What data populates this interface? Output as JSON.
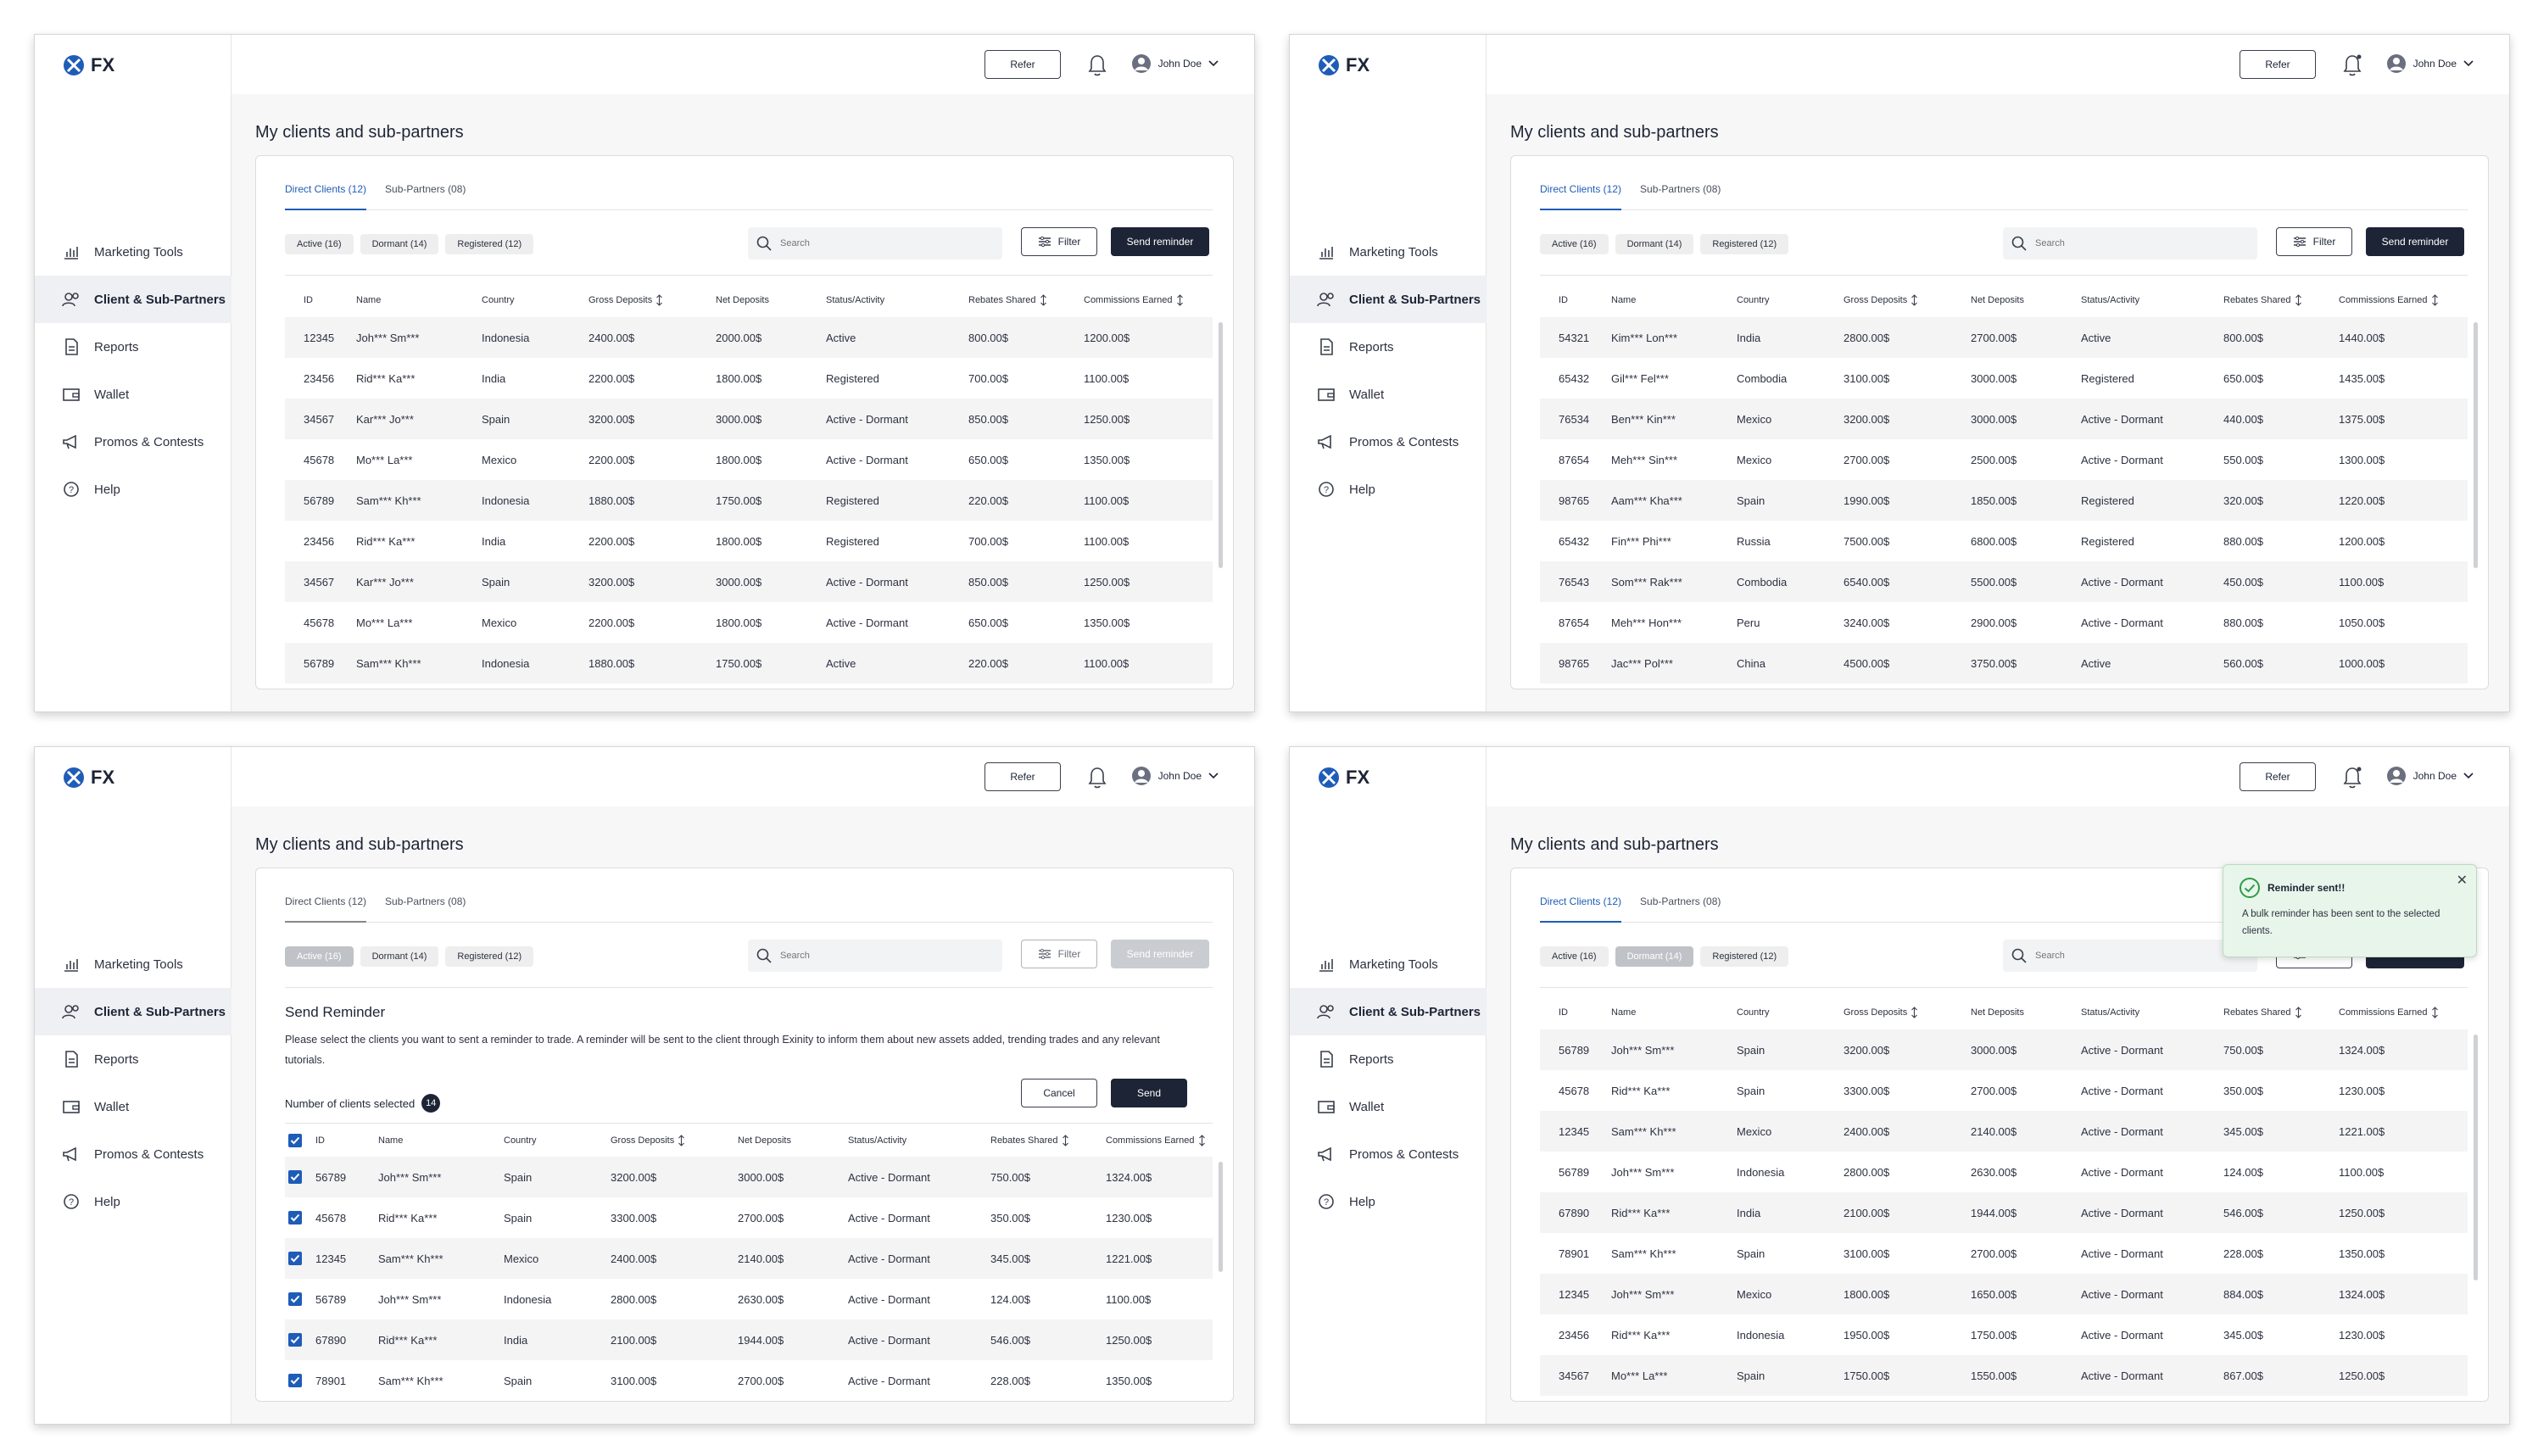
{
  "app": {
    "logo_text": "FX"
  },
  "nav": [
    {
      "label": "Marketing Tools",
      "icon": "bar-chart-icon"
    },
    {
      "label": "Client & Sub-Partners",
      "icon": "users-icon"
    },
    {
      "label": "Reports",
      "icon": "document-icon"
    },
    {
      "label": "Wallet",
      "icon": "wallet-icon"
    },
    {
      "label": "Promos & Contests",
      "icon": "megaphone-icon"
    },
    {
      "label": "Help",
      "icon": "help-icon"
    }
  ],
  "topbar": {
    "refer": "Refer",
    "user_name": "John Doe"
  },
  "page": {
    "title": "My clients and sub-partners"
  },
  "tabs": {
    "direct": "Direct Clients (12)",
    "sub": "Sub-Partners (08)"
  },
  "chips": {
    "active": "Active (16)",
    "dormant": "Dormant (14)",
    "registered": "Registered (12)"
  },
  "actions": {
    "search_placeholder": "Search",
    "filter": "Filter",
    "send_reminder": "Send reminder"
  },
  "columns": [
    "ID",
    "Name",
    "Country",
    "Gross Deposits",
    "Net Deposits",
    "Status/Activity",
    "Rebates Shared",
    "Commissions Earned"
  ],
  "screen1_rows": [
    [
      "12345",
      "Joh*** Sm***",
      "Indonesia",
      "2400.00$",
      "2000.00$",
      "Active",
      "800.00$",
      "1200.00$"
    ],
    [
      "23456",
      "Rid*** Ka***",
      "India",
      "2200.00$",
      "1800.00$",
      "Registered",
      "700.00$",
      "1100.00$"
    ],
    [
      "34567",
      "Kar*** Jo***",
      "Spain",
      "3200.00$",
      "3000.00$",
      "Active - Dormant",
      "850.00$",
      "1250.00$"
    ],
    [
      "45678",
      "Mo*** La***",
      "Mexico",
      "2200.00$",
      "1800.00$",
      "Active - Dormant",
      "650.00$",
      "1350.00$"
    ],
    [
      "56789",
      "Sam*** Kh***",
      "Indonesia",
      "1880.00$",
      "1750.00$",
      "Registered",
      "220.00$",
      "1100.00$"
    ],
    [
      "23456",
      "Rid*** Ka***",
      "India",
      "2200.00$",
      "1800.00$",
      "Registered",
      "700.00$",
      "1100.00$"
    ],
    [
      "34567",
      "Kar*** Jo***",
      "Spain",
      "3200.00$",
      "3000.00$",
      "Active - Dormant",
      "850.00$",
      "1250.00$"
    ],
    [
      "45678",
      "Mo*** La***",
      "Mexico",
      "2200.00$",
      "1800.00$",
      "Active - Dormant",
      "650.00$",
      "1350.00$"
    ],
    [
      "56789",
      "Sam*** Kh***",
      "Indonesia",
      "1880.00$",
      "1750.00$",
      "Active",
      "220.00$",
      "1100.00$"
    ]
  ],
  "screen2_rows": [
    [
      "54321",
      "Kim*** Lon***",
      "India",
      "2800.00$",
      "2700.00$",
      "Active",
      "800.00$",
      "1440.00$"
    ],
    [
      "65432",
      "Gil*** Fel***",
      "Combodia",
      "3100.00$",
      "3000.00$",
      "Registered",
      "650.00$",
      "1435.00$"
    ],
    [
      "76534",
      "Ben*** Kin***",
      "Mexico",
      "3200.00$",
      "3000.00$",
      "Active - Dormant",
      "440.00$",
      "1375.00$"
    ],
    [
      "87654",
      "Meh*** Sin***",
      "Mexico",
      "2700.00$",
      "2500.00$",
      "Active - Dormant",
      "550.00$",
      "1300.00$"
    ],
    [
      "98765",
      "Aam*** Kha***",
      "Spain",
      "1990.00$",
      "1850.00$",
      "Registered",
      "320.00$",
      "1220.00$"
    ],
    [
      "65432",
      "Fin*** Phi***",
      "Russia",
      "7500.00$",
      "6800.00$",
      "Registered",
      "880.00$",
      "1200.00$"
    ],
    [
      "76543",
      "Som*** Rak***",
      "Combodia",
      "6540.00$",
      "5500.00$",
      "Active - Dormant",
      "450.00$",
      "1100.00$"
    ],
    [
      "87654",
      "Meh*** Hon***",
      "Peru",
      "3240.00$",
      "2900.00$",
      "Active - Dormant",
      "880.00$",
      "1050.00$"
    ],
    [
      "98765",
      "Jac*** Pol***",
      "China",
      "4500.00$",
      "3750.00$",
      "Active",
      "560.00$",
      "1000.00$"
    ]
  ],
  "reminder": {
    "title": "Send Reminder",
    "description": "Please select the clients you want to sent a reminder to trade. A reminder will be sent to the client through Exinity to inform them about new assets added, trending trades and any relevant tutorials.",
    "count_label": "Number of clients selected",
    "count": "14",
    "cancel": "Cancel",
    "send": "Send"
  },
  "screen3_rows": [
    [
      "56789",
      "Joh*** Sm***",
      "Spain",
      "3200.00$",
      "3000.00$",
      "Active - Dormant",
      "750.00$",
      "1324.00$"
    ],
    [
      "45678",
      "Rid*** Ka***",
      "Spain",
      "3300.00$",
      "2700.00$",
      "Active - Dormant",
      "350.00$",
      "1230.00$"
    ],
    [
      "12345",
      "Sam*** Kh***",
      "Mexico",
      "2400.00$",
      "2140.00$",
      "Active - Dormant",
      "345.00$",
      "1221.00$"
    ],
    [
      "56789",
      "Joh*** Sm***",
      "Indonesia",
      "2800.00$",
      "2630.00$",
      "Active - Dormant",
      "124.00$",
      "1100.00$"
    ],
    [
      "67890",
      "Rid*** Ka***",
      "India",
      "2100.00$",
      "1944.00$",
      "Active - Dormant",
      "546.00$",
      "1250.00$"
    ],
    [
      "78901",
      "Sam*** Kh***",
      "Spain",
      "3100.00$",
      "2700.00$",
      "Active - Dormant",
      "228.00$",
      "1350.00$"
    ]
  ],
  "toast": {
    "title": "Reminder sent!!",
    "body": "A bulk reminder has been sent to the selected clients."
  },
  "screen4_rows": [
    [
      "56789",
      "Joh*** Sm***",
      "Spain",
      "3200.00$",
      "3000.00$",
      "Active - Dormant",
      "750.00$",
      "1324.00$"
    ],
    [
      "45678",
      "Rid*** Ka***",
      "Spain",
      "3300.00$",
      "2700.00$",
      "Active - Dormant",
      "350.00$",
      "1230.00$"
    ],
    [
      "12345",
      "Sam*** Kh***",
      "Mexico",
      "2400.00$",
      "2140.00$",
      "Active - Dormant",
      "345.00$",
      "1221.00$"
    ],
    [
      "56789",
      "Joh*** Sm***",
      "Indonesia",
      "2800.00$",
      "2630.00$",
      "Active - Dormant",
      "124.00$",
      "1100.00$"
    ],
    [
      "67890",
      "Rid*** Ka***",
      "India",
      "2100.00$",
      "1944.00$",
      "Active - Dormant",
      "546.00$",
      "1250.00$"
    ],
    [
      "78901",
      "Sam*** Kh***",
      "Spain",
      "3100.00$",
      "2700.00$",
      "Active - Dormant",
      "228.00$",
      "1350.00$"
    ],
    [
      "12345",
      "Joh*** Sm***",
      "Mexico",
      "1800.00$",
      "1650.00$",
      "Active - Dormant",
      "884.00$",
      "1324.00$"
    ],
    [
      "23456",
      "Rid*** Ka***",
      "Indonesia",
      "1950.00$",
      "1750.00$",
      "Active - Dormant",
      "345.00$",
      "1230.00$"
    ],
    [
      "34567",
      "Mo*** La***",
      "Spain",
      "1750.00$",
      "1550.00$",
      "Active - Dormant",
      "867.00$",
      "1250.00$"
    ]
  ],
  "colors": {
    "primary": "#1d2436",
    "accent": "#1f5cb8",
    "success": "#2e9b48"
  }
}
